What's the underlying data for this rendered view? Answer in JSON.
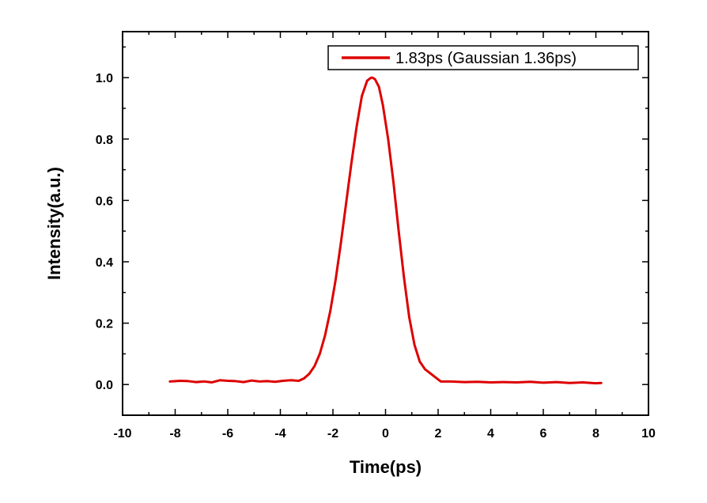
{
  "chart_data": {
    "type": "line",
    "title": "",
    "xlabel": "Time(ps)",
    "ylabel": "Intensity(a.u.)",
    "xlim": [
      -10,
      10
    ],
    "ylim": [
      -0.1,
      1.15
    ],
    "xticks": [
      -10,
      -8,
      -6,
      -4,
      -2,
      0,
      2,
      4,
      6,
      8,
      10
    ],
    "xtick_labels": [
      "-10",
      "-8",
      "-6",
      "-4",
      "-2",
      "0",
      "2",
      "4",
      "6",
      "8",
      "10"
    ],
    "yticks": [
      0.0,
      0.2,
      0.4,
      0.6,
      0.8,
      1.0
    ],
    "ytick_labels": [
      "0.0",
      "0.2",
      "0.4",
      "0.6",
      "0.8",
      "1.0"
    ],
    "grid": false,
    "legend": {
      "position": "top-right",
      "entries": [
        "1.83ps (Gaussian 1.36ps)"
      ]
    },
    "series": [
      {
        "name": "1.83ps (Gaussian 1.36ps)",
        "color": "#dd0000",
        "x": [
          -8.2,
          -7.8,
          -7.5,
          -7.2,
          -6.9,
          -6.6,
          -6.3,
          -6.0,
          -5.7,
          -5.4,
          -5.1,
          -4.8,
          -4.5,
          -4.2,
          -3.9,
          -3.6,
          -3.3,
          -3.1,
          -2.9,
          -2.7,
          -2.5,
          -2.3,
          -2.1,
          -1.9,
          -1.7,
          -1.5,
          -1.3,
          -1.1,
          -0.9,
          -0.7,
          -0.55,
          -0.5,
          -0.4,
          -0.25,
          -0.1,
          0.1,
          0.3,
          0.5,
          0.7,
          0.9,
          1.1,
          1.3,
          1.5,
          1.8,
          2.1,
          2.5,
          3.0,
          3.5,
          4.0,
          4.5,
          5.0,
          5.5,
          6.0,
          6.5,
          7.0,
          7.5,
          8.0,
          8.2
        ],
        "y": [
          0.01,
          0.012,
          0.011,
          0.008,
          0.01,
          0.007,
          0.014,
          0.012,
          0.011,
          0.008,
          0.013,
          0.01,
          0.011,
          0.009,
          0.012,
          0.014,
          0.012,
          0.02,
          0.035,
          0.06,
          0.1,
          0.16,
          0.24,
          0.34,
          0.46,
          0.59,
          0.72,
          0.84,
          0.94,
          0.99,
          1.0,
          1.0,
          0.995,
          0.97,
          0.91,
          0.8,
          0.66,
          0.5,
          0.35,
          0.22,
          0.13,
          0.075,
          0.05,
          0.03,
          0.01,
          0.01,
          0.008,
          0.009,
          0.007,
          0.008,
          0.007,
          0.009,
          0.006,
          0.008,
          0.005,
          0.007,
          0.004,
          0.005
        ]
      }
    ]
  }
}
